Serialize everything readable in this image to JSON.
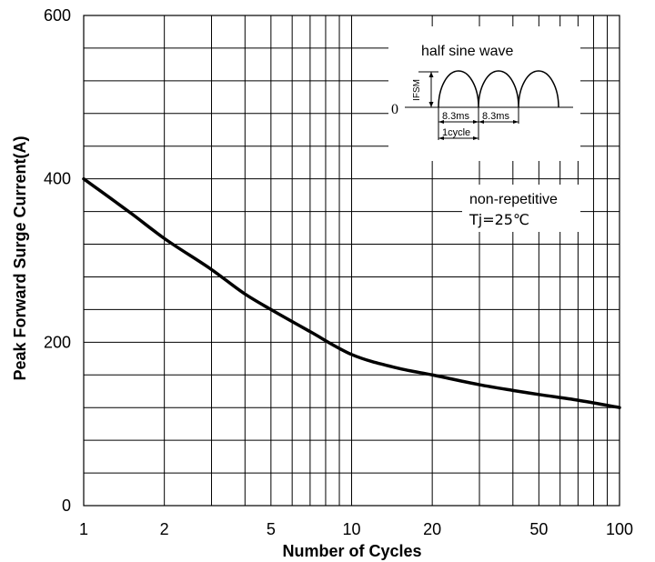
{
  "chart_data": {
    "type": "line",
    "title": "",
    "xlabel": "Number of Cycles",
    "ylabel": "Peak Forward Surge Current(A)",
    "x_scale": "log",
    "xlim": [
      1,
      100
    ],
    "ylim": [
      0,
      600
    ],
    "grid": true,
    "x_ticks": [
      1,
      2,
      5,
      10,
      20,
      50,
      100
    ],
    "y_ticks": [
      0,
      200,
      400,
      600
    ],
    "series": [
      {
        "name": "",
        "color": "#000000",
        "x": [
          1,
          1.5,
          2,
          3,
          4,
          5,
          7,
          10,
          15,
          20,
          30,
          40,
          50,
          70,
          100
        ],
        "y": [
          400,
          358,
          327,
          289,
          259,
          240,
          213,
          185,
          168,
          160,
          148,
          141,
          136,
          129,
          120
        ]
      }
    ],
    "annotations": {
      "waveform_title": "half sine wave",
      "zero_label": "0",
      "ifsm_label": "IFSM",
      "period_label_1": "8.3ms",
      "period_label_2": "8.3ms",
      "cycle_label": "1cycle",
      "condition_1": "non-repetitive",
      "condition_2": "Tj=25℃"
    }
  }
}
